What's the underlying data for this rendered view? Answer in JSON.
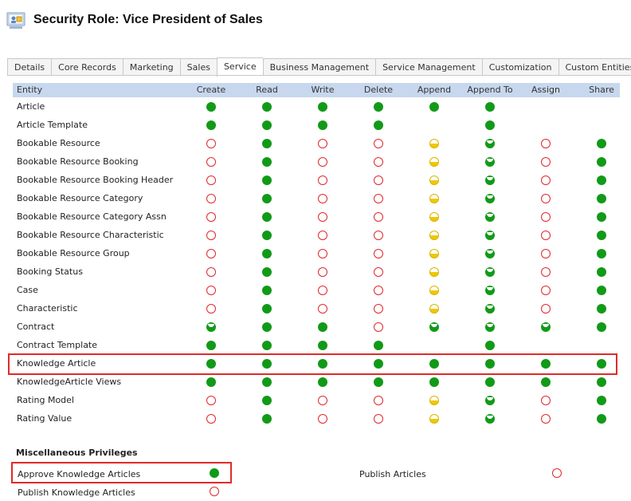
{
  "header": {
    "title": "Security Role: Vice President of Sales",
    "icon": "security-role-icon"
  },
  "tabs": [
    {
      "label": "Details"
    },
    {
      "label": "Core Records"
    },
    {
      "label": "Marketing"
    },
    {
      "label": "Sales"
    },
    {
      "label": "Service",
      "active": true
    },
    {
      "label": "Business Management"
    },
    {
      "label": "Service Management"
    },
    {
      "label": "Customization"
    },
    {
      "label": "Custom Entities"
    }
  ],
  "table": {
    "columns": [
      "Entity",
      "Create",
      "Read",
      "Write",
      "Delete",
      "Append",
      "Append To",
      "Assign",
      "Share"
    ],
    "legend_levels": {
      "org": "green-filled",
      "bu": "green-partial",
      "user": "yellow-half",
      "none": "red-empty"
    },
    "rows": [
      {
        "name": "Article",
        "levels": [
          "org",
          "org",
          "org",
          "org",
          "org",
          "org",
          "",
          ""
        ]
      },
      {
        "name": "Article Template",
        "levels": [
          "org",
          "org",
          "org",
          "org",
          "",
          "org",
          "",
          ""
        ]
      },
      {
        "name": "Bookable Resource",
        "levels": [
          "none",
          "org",
          "none",
          "none",
          "user",
          "bu",
          "none",
          "org"
        ]
      },
      {
        "name": "Bookable Resource Booking",
        "levels": [
          "none",
          "org",
          "none",
          "none",
          "user",
          "bu",
          "none",
          "org"
        ]
      },
      {
        "name": "Bookable Resource Booking Header",
        "levels": [
          "none",
          "org",
          "none",
          "none",
          "user",
          "bu",
          "none",
          "org"
        ]
      },
      {
        "name": "Bookable Resource Category",
        "levels": [
          "none",
          "org",
          "none",
          "none",
          "user",
          "bu",
          "none",
          "org"
        ]
      },
      {
        "name": "Bookable Resource Category Assn",
        "levels": [
          "none",
          "org",
          "none",
          "none",
          "user",
          "bu",
          "none",
          "org"
        ]
      },
      {
        "name": "Bookable Resource Characteristic",
        "levels": [
          "none",
          "org",
          "none",
          "none",
          "user",
          "bu",
          "none",
          "org"
        ]
      },
      {
        "name": "Bookable Resource Group",
        "levels": [
          "none",
          "org",
          "none",
          "none",
          "user",
          "bu",
          "none",
          "org"
        ]
      },
      {
        "name": "Booking Status",
        "levels": [
          "none",
          "org",
          "none",
          "none",
          "user",
          "bu",
          "none",
          "org"
        ]
      },
      {
        "name": "Case",
        "levels": [
          "none",
          "org",
          "none",
          "none",
          "user",
          "bu",
          "none",
          "org"
        ]
      },
      {
        "name": "Characteristic",
        "levels": [
          "none",
          "org",
          "none",
          "none",
          "user",
          "bu",
          "none",
          "org"
        ]
      },
      {
        "name": "Contract",
        "levels": [
          "bu",
          "org",
          "org",
          "none",
          "bu",
          "bu",
          "bu",
          "org"
        ]
      },
      {
        "name": "Contract Template",
        "levels": [
          "org",
          "org",
          "org",
          "org",
          "",
          "org",
          "",
          ""
        ]
      },
      {
        "name": "Knowledge Article",
        "levels": [
          "org",
          "org",
          "org",
          "org",
          "org",
          "org",
          "org",
          "org"
        ],
        "highlighted": true
      },
      {
        "name": "KnowledgeArticle Views",
        "levels": [
          "org",
          "org",
          "org",
          "org",
          "org",
          "org",
          "org",
          "org"
        ]
      },
      {
        "name": "Rating Model",
        "levels": [
          "none",
          "org",
          "none",
          "none",
          "user",
          "bu",
          "none",
          "org"
        ]
      },
      {
        "name": "Rating Value",
        "levels": [
          "none",
          "org",
          "none",
          "none",
          "user",
          "bu",
          "none",
          "org"
        ]
      }
    ]
  },
  "misc": {
    "title": "Miscellaneous Privileges",
    "items": [
      {
        "label": "Approve Knowledge Articles",
        "level": "org",
        "highlighted": true
      },
      {
        "label": "Publish Articles",
        "level": "none"
      },
      {
        "label": "Publish Knowledge Articles",
        "level": "none"
      }
    ]
  },
  "colors": {
    "header_row": "#c7d8ee",
    "highlight": "#e02a2a",
    "org": "#119a18",
    "none": "#e0282e",
    "user": "#f0c800"
  }
}
